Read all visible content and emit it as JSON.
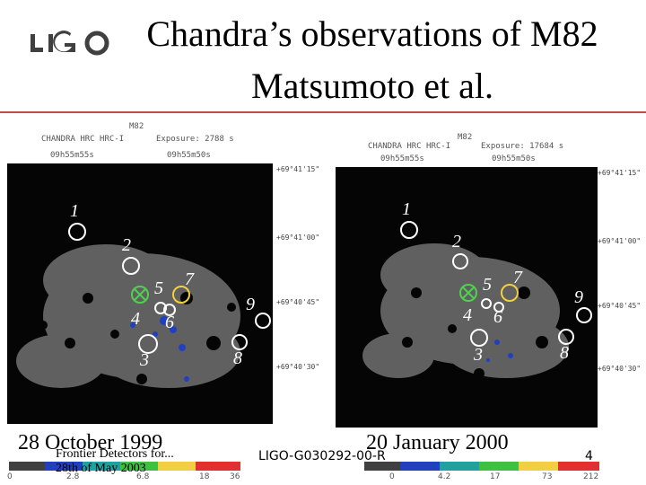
{
  "logo": {
    "text": "LIGO"
  },
  "slide": {
    "title": "Chandra’s observations of M82",
    "subtitle": "Matsumoto et al.",
    "page_number": "4",
    "doc_id": "LIGO-G030292-00-R",
    "footer_line1": "Frontier Detectors for...",
    "footer_line2": "28th of May 2003"
  },
  "left_panel": {
    "object": "M82",
    "instrument": "CHANDRA HRC HRC-I",
    "exposure": "Exposure: 2788 s",
    "ra_ticks": [
      "09h55m55s",
      "09h55m50s"
    ],
    "dec_ticks": [
      "+69°41'15\"",
      "+69°41'00\"",
      "+69°40'45\"",
      "+69°40'30\""
    ],
    "colorbar_labels": [
      "0",
      "2.8",
      "6.8",
      "18",
      "36"
    ],
    "date": "28 October 1999"
  },
  "right_panel": {
    "object": "M82",
    "instrument": "CHANDRA HRC HRC-I",
    "exposure": "Exposure: 17684 s",
    "ra_ticks": [
      "09h55m55s",
      "09h55m50s"
    ],
    "dec_ticks": [
      "+69°41'15\"",
      "+69°41'00\"",
      "+69°40'45\"",
      "+69°40'30\""
    ],
    "colorbar_labels": [
      "0",
      "4.2",
      "17",
      "73",
      "212"
    ],
    "date": "20 January 2000"
  },
  "sources": [
    "1",
    "2",
    "3",
    "4",
    "5",
    "6",
    "7",
    "8",
    "9"
  ]
}
